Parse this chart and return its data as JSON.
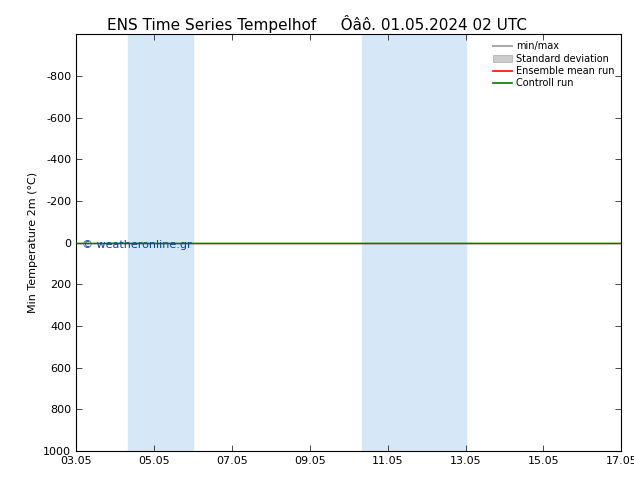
{
  "title": "ENS Time Series Tempelhof",
  "title2": "Ôâô. 01.05.2024 02 UTC",
  "ylabel": "Min Temperature 2m (°C)",
  "xtick_labels": [
    "03.05",
    "05.05",
    "07.05",
    "09.05",
    "11.05",
    "13.05",
    "15.05",
    "17.05"
  ],
  "xtick_positions": [
    0,
    2,
    4,
    6,
    8,
    10,
    12,
    14
  ],
  "ylim_bottom": 1000,
  "ylim_top": -1000,
  "ytick_positions": [
    -800,
    -600,
    -400,
    -200,
    0,
    200,
    400,
    600,
    800,
    1000
  ],
  "ytick_labels": [
    "-800",
    "-600",
    "-400",
    "-200",
    "0",
    "200",
    "400",
    "600",
    "800",
    "1000"
  ],
  "shaded_regions": [
    {
      "x_start": 1.33,
      "x_end": 3.0
    },
    {
      "x_start": 7.33,
      "x_end": 10.0
    }
  ],
  "shaded_color": "#d6e8f7",
  "horizontal_line_y": 0,
  "horizontal_line_color_green": "#007700",
  "horizontal_line_color_red": "#ff0000",
  "legend_entries": [
    "min/max",
    "Standard deviation",
    "Ensemble mean run",
    "Controll run"
  ],
  "legend_line_color": "#aaaaaa",
  "legend_box_color": "#cccccc",
  "legend_red": "#ff0000",
  "legend_green": "#007700",
  "watermark": "© weatheronline.gr",
  "watermark_color": "#0044bb",
  "background_color": "#ffffff",
  "plot_bg_color": "#ffffff",
  "border_color": "#000000",
  "tick_color": "#000000",
  "title_fontsize": 11,
  "tick_fontsize": 8,
  "ylabel_fontsize": 8
}
